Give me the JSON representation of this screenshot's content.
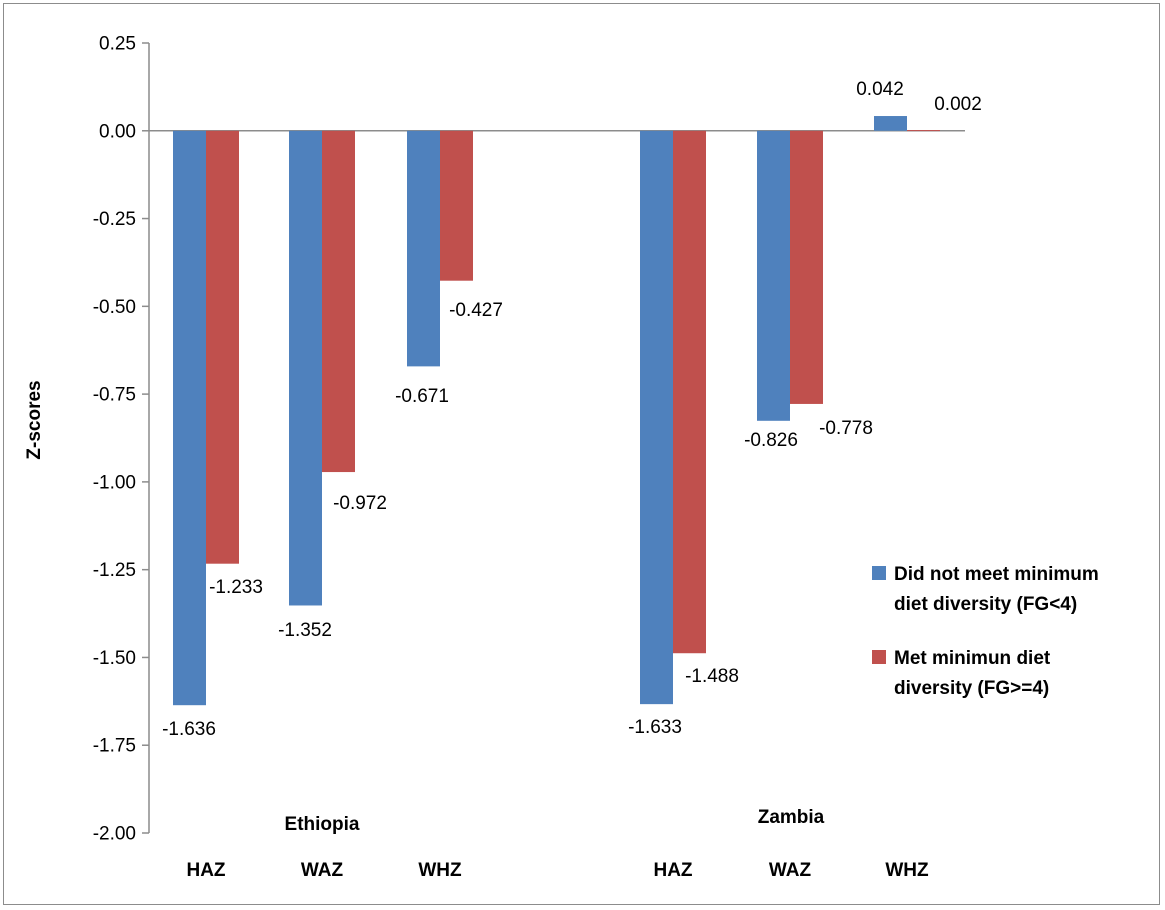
{
  "chart_data": {
    "type": "bar",
    "ylabel": "Z-scores",
    "ylim": [
      -2.0,
      0.25
    ],
    "yticks": [
      "0.25",
      "0.00",
      "-0.25",
      "-0.50",
      "-0.75",
      "-1.00",
      "-1.25",
      "-1.50",
      "-1.75",
      "-2.00"
    ],
    "yticks_values": [
      0.25,
      0.0,
      -0.25,
      -0.5,
      -0.75,
      -1.0,
      -1.25,
      -1.5,
      -1.75,
      -2.0
    ],
    "groups": [
      "Ethiopia",
      "Zambia"
    ],
    "categories": [
      "HAZ",
      "WAZ",
      "WHZ",
      "HAZ",
      "WAZ",
      "WHZ"
    ],
    "series": [
      {
        "name": "Did not meet minimum diet diversity (FG<4)",
        "legend_lines": [
          "Did not meet minimum",
          "diet diversity (FG<4)"
        ],
        "color": "#4f81bd",
        "values": [
          -1.636,
          -1.352,
          -0.671,
          -1.633,
          -0.826,
          0.042
        ],
        "labels": [
          "-1.636",
          "-1.352",
          "-0.671",
          "-1.633",
          "-0.826",
          "0.042"
        ]
      },
      {
        "name": "Met minimun diet diversity (FG>=4)",
        "legend_lines": [
          "Met minimun diet",
          "diversity (FG>=4)"
        ],
        "color": "#c0504d",
        "values": [
          -1.233,
          -0.972,
          -0.427,
          -1.488,
          -0.778,
          0.002
        ],
        "labels": [
          "-1.233",
          "-0.972",
          "-0.427",
          "-1.488",
          "-0.778",
          "0.002"
        ]
      }
    ],
    "grid": false,
    "legend_position": "right"
  }
}
